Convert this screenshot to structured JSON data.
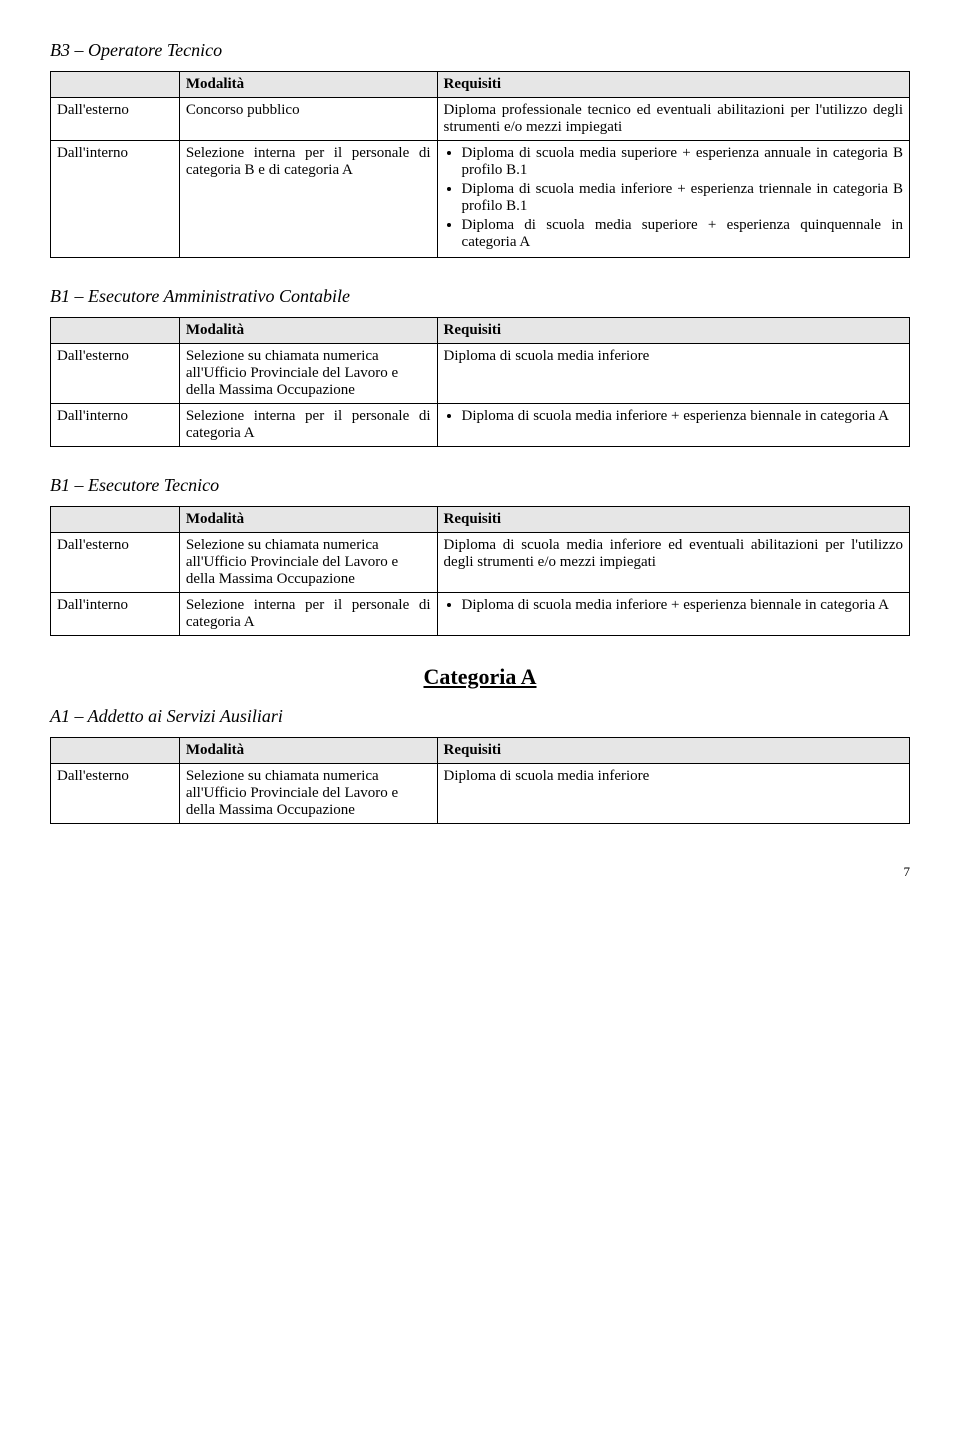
{
  "b3": {
    "title_prefix": "B3 – ",
    "title": "Operatore Tecnico",
    "headers": {
      "mod": "Modalità",
      "req": "Requisiti"
    },
    "rows": [
      {
        "src": "Dall'esterno",
        "mod": "Concorso pubblico",
        "req_text": "Diploma professionale tecnico ed eventuali abilitazioni per l'utilizzo degli strumenti e/o mezzi impiegati"
      },
      {
        "src": "Dall'interno",
        "mod": "Selezione interna per il personale di categoria B e di categoria A",
        "req_items": [
          "Diploma di scuola media superiore + esperienza annuale in categoria B profilo B.1",
          "Diploma di scuola media inferiore + esperienza triennale in categoria B profilo B.1",
          "Diploma di scuola media superiore + esperienza quinquennale in categoria A"
        ]
      }
    ]
  },
  "b1a": {
    "title_prefix": "B1 – ",
    "title": "Esecutore Amministrativo Contabile",
    "headers": {
      "mod": "Modalità",
      "req": "Requisiti"
    },
    "rows": [
      {
        "src": "Dall'esterno",
        "mod": "Selezione su chiamata numerica all'Ufficio Provinciale del Lavoro e della Massima Occupazione",
        "req_text": "Diploma di scuola media inferiore"
      },
      {
        "src": "Dall'interno",
        "mod": "Selezione interna per il personale di categoria A",
        "req_items": [
          "Diploma di scuola media inferiore + esperienza biennale in categoria A"
        ]
      }
    ]
  },
  "b1t": {
    "title_prefix": "B1 – ",
    "title": "Esecutore Tecnico",
    "headers": {
      "mod": "Modalità",
      "req": "Requisiti"
    },
    "rows": [
      {
        "src": "Dall'esterno",
        "mod": "Selezione su chiamata numerica all'Ufficio Provinciale del Lavoro e della Massima Occupazione",
        "req_text": "Diploma di scuola media inferiore ed eventuali abilitazioni per l'utilizzo degli strumenti e/o mezzi impiegati"
      },
      {
        "src": "Dall'interno",
        "mod": "Selezione interna per il personale di categoria A",
        "req_items": [
          "Diploma di scuola media inferiore + esperienza biennale in categoria A"
        ]
      }
    ]
  },
  "catA_heading": "Categoria A",
  "a1": {
    "title_prefix": "A1 – ",
    "title": "Addetto ai Servizi Ausiliari",
    "headers": {
      "mod": "Modalità",
      "req": "Requisiti"
    },
    "rows": [
      {
        "src": "Dall'esterno",
        "mod": "Selezione su chiamata numerica all'Ufficio Provinciale del Lavoro e della Massima Occupazione",
        "req_text": "Diploma di scuola media inferiore"
      }
    ]
  },
  "page_number": "7"
}
